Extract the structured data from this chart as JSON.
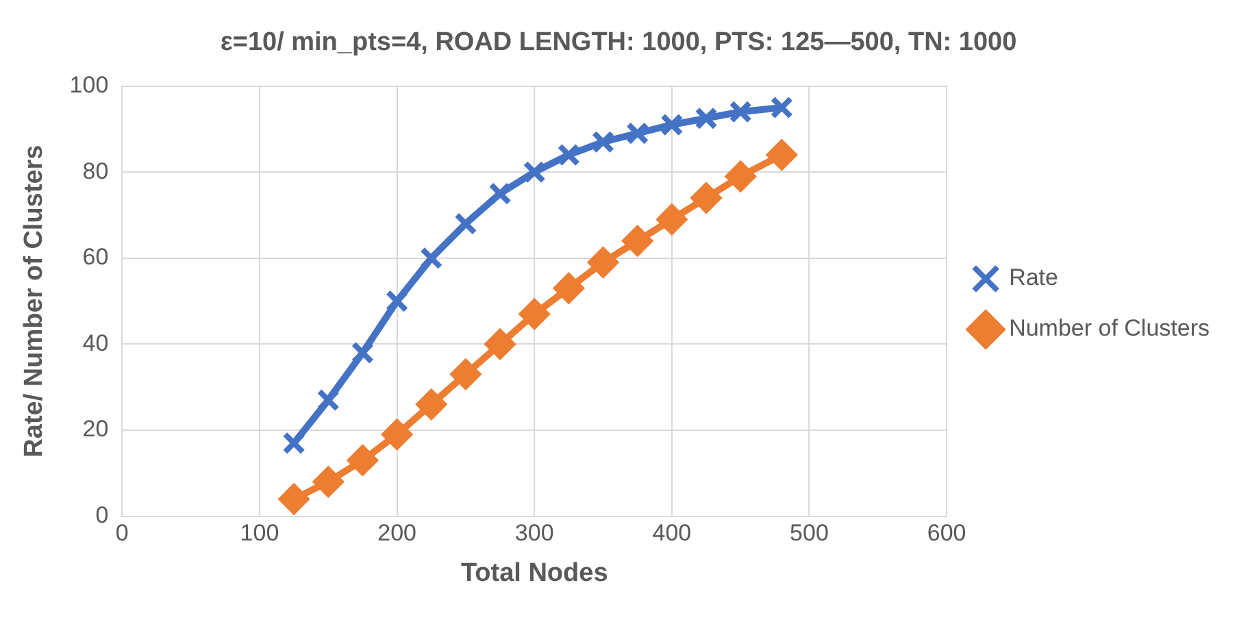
{
  "chart_data": {
    "type": "line",
    "title": "ε=10/ min_pts=4, ROAD LENGTH: 1000, PTS: 125—500, TN: 1000",
    "xlabel": "Total Nodes",
    "ylabel": "Rate/ Number of Clusters",
    "x": [
      125,
      150,
      175,
      200,
      225,
      250,
      275,
      300,
      325,
      350,
      375,
      400,
      425,
      450,
      480
    ],
    "series": [
      {
        "name": "Rate",
        "color": "#4472c4",
        "marker": "cross",
        "line_style": "solid",
        "values": [
          17,
          27,
          38,
          50,
          60,
          68,
          75,
          80,
          84,
          87,
          89,
          91,
          92.5,
          94,
          95
        ]
      },
      {
        "name": "Number of Clusters",
        "color": "#ed7d31",
        "marker": "diamond",
        "line_style": "solid",
        "values": [
          4,
          8,
          13,
          19,
          26,
          33,
          40,
          47,
          53,
          59,
          64,
          69,
          74,
          79,
          84
        ]
      }
    ],
    "xlim": [
      0,
      600
    ],
    "xticks": [
      0,
      100,
      200,
      300,
      400,
      500,
      600
    ],
    "ylim": [
      0,
      100
    ],
    "yticks": [
      0,
      20,
      40,
      60,
      80,
      100
    ],
    "grid": true,
    "legend": "right"
  }
}
